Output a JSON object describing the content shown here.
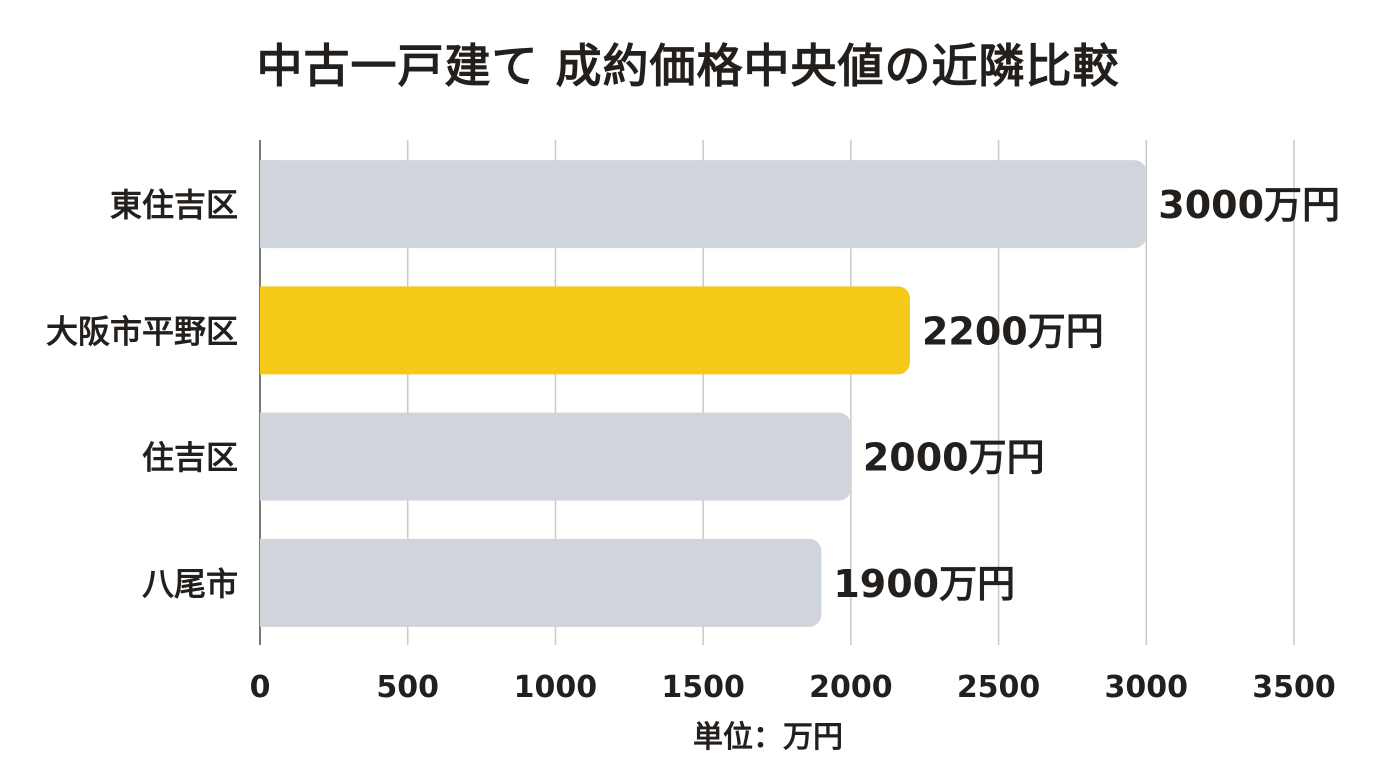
{
  "chart_data": {
    "type": "bar",
    "orientation": "horizontal",
    "title": "中古一戸建て 成約価格中央値の近隣比較",
    "xlabel": "単位：万円",
    "ylabel": "",
    "categories": [
      "東住吉区",
      "大阪市平野区",
      "住吉区",
      "八尾市"
    ],
    "values": [
      3000,
      2200,
      2000,
      1900
    ],
    "data_labels": [
      "3000万円",
      "2200万円",
      "2000万円",
      "1900万円"
    ],
    "highlight_category": "大阪市平野区",
    "xlim": [
      0,
      3500
    ],
    "xticks": [
      0,
      500,
      1000,
      1500,
      2000,
      2500,
      3000,
      3500
    ],
    "grid": true,
    "colors": {
      "default": "#d0d5dc",
      "highlight": "#f6c817",
      "grid": "#c9c9c9",
      "axis": "#7a7a7a",
      "text": "#231f1c"
    }
  }
}
